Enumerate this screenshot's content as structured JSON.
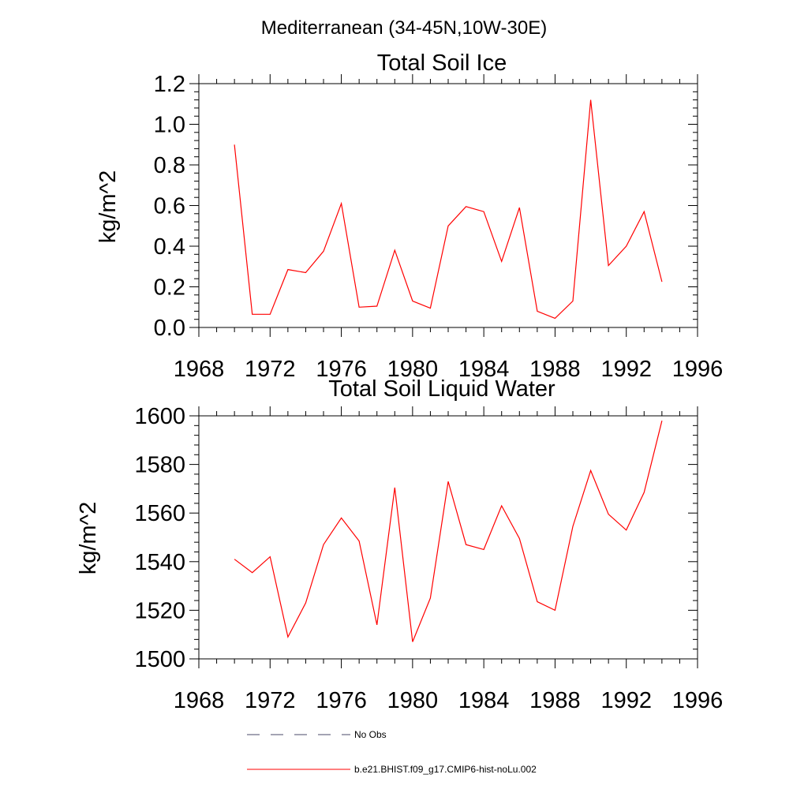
{
  "suptitle": "Mediterranean (34-45N,10W-30E)",
  "legend": {
    "placement": "bottom-left",
    "entries": [
      {
        "label": "No Obs",
        "color": "#4a4a6a",
        "style": "dashed"
      },
      {
        "label": "b.e21.BHIST.f09_g17.CMIP6-hist-noLu.002",
        "color": "#ff0000",
        "style": "solid"
      }
    ]
  },
  "chart_data": [
    {
      "type": "line",
      "title": "Total Soil Ice",
      "xlabel": "",
      "ylabel": "kg/m^2",
      "xlim": [
        1968,
        1996
      ],
      "ylim": [
        0,
        1.2
      ],
      "x_ticks": [
        "1968",
        "1972",
        "1976",
        "1980",
        "1984",
        "1988",
        "1992",
        "1996"
      ],
      "y_ticks": [
        "0.0",
        "0.2",
        "0.4",
        "0.6",
        "0.8",
        "1.0",
        "1.2"
      ],
      "grid": false,
      "x": [
        1970,
        1971,
        1972,
        1973,
        1974,
        1975,
        1976,
        1977,
        1978,
        1979,
        1980,
        1981,
        1982,
        1983,
        1984,
        1985,
        1986,
        1987,
        1988,
        1989,
        1990,
        1991,
        1992,
        1993,
        1994
      ],
      "series": [
        {
          "name": "b.e21.BHIST.f09_g17.CMIP6-hist-noLu.002",
          "color": "#ff0000",
          "values": [
            0.9,
            0.065,
            0.065,
            0.285,
            0.27,
            0.375,
            0.61,
            0.1,
            0.105,
            0.38,
            0.13,
            0.095,
            0.5,
            0.595,
            0.57,
            0.325,
            0.59,
            0.08,
            0.045,
            0.13,
            1.12,
            0.305,
            0.4,
            0.57,
            0.225
          ]
        }
      ]
    },
    {
      "type": "line",
      "title": "Total Soil Liquid Water",
      "xlabel": "",
      "ylabel": "kg/m^2",
      "xlim": [
        1968,
        1996
      ],
      "ylim": [
        1500,
        1600
      ],
      "x_ticks": [
        "1968",
        "1972",
        "1976",
        "1980",
        "1984",
        "1988",
        "1992",
        "1996"
      ],
      "y_ticks": [
        "1500",
        "1520",
        "1540",
        "1560",
        "1580",
        "1600"
      ],
      "grid": false,
      "x": [
        1970,
        1971,
        1972,
        1973,
        1974,
        1975,
        1976,
        1977,
        1978,
        1979,
        1980,
        1981,
        1982,
        1983,
        1984,
        1985,
        1986,
        1987,
        1988,
        1989,
        1990,
        1991,
        1992,
        1993,
        1994
      ],
      "series": [
        {
          "name": "b.e21.BHIST.f09_g17.CMIP6-hist-noLu.002",
          "color": "#ff0000",
          "values": [
            1541,
            1535.5,
            1542,
            1509,
            1523,
            1547,
            1558,
            1548.5,
            1514,
            1570.5,
            1507,
            1525,
            1573,
            1547,
            1545,
            1563,
            1549.5,
            1523.5,
            1520,
            1554.5,
            1577.5,
            1559.5,
            1553,
            1568.5,
            1598
          ]
        }
      ]
    }
  ]
}
